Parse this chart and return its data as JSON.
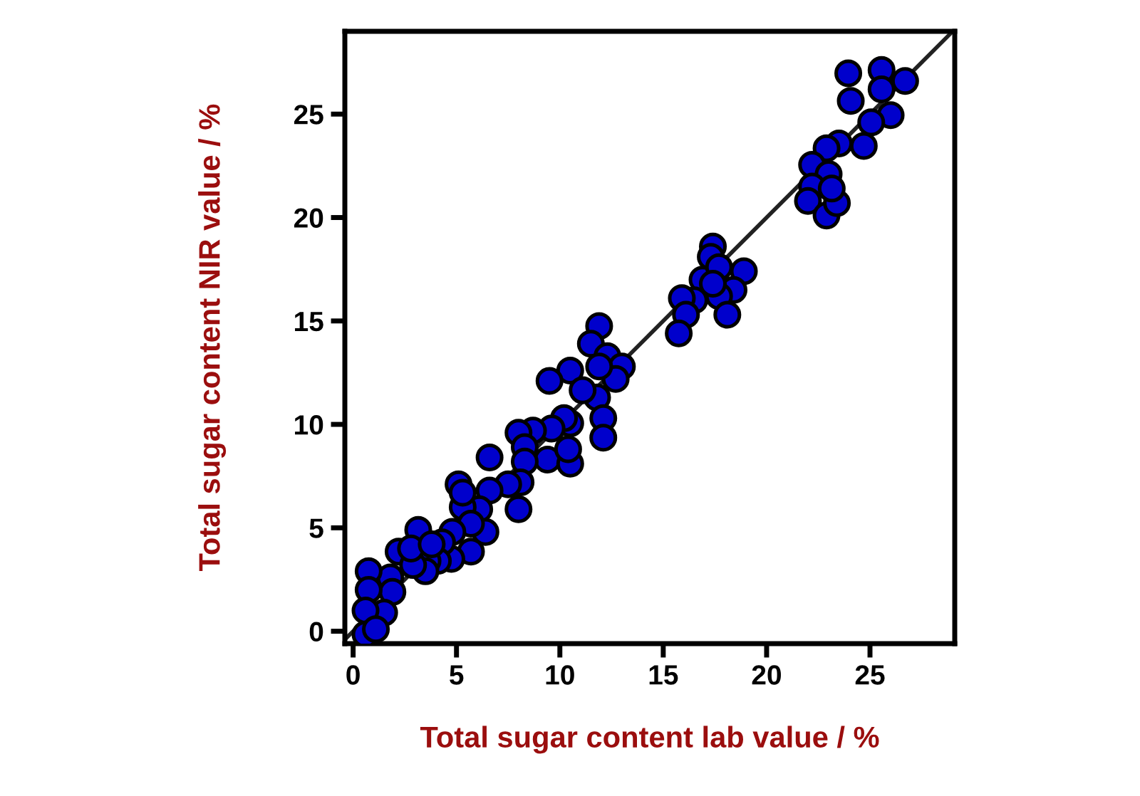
{
  "chart_data": {
    "type": "scatter",
    "xlabel": "Total sugar content lab value / %",
    "ylabel": "Total sugar content NIR value / %",
    "xlim": [
      -0.4,
      29.1
    ],
    "ylim": [
      -0.6,
      29
    ],
    "xticks": [
      0,
      5,
      10,
      15,
      20,
      25
    ],
    "yticks": [
      0,
      5,
      10,
      15,
      20,
      25
    ],
    "grid": false,
    "series": [
      {
        "type": "line",
        "color": "#222222",
        "x": [
          -0.4,
          29
        ],
        "values": [
          -0.4,
          29
        ]
      },
      {
        "marker": "circle",
        "color": "#0000cc",
        "x": [
          23.95,
          25.56,
          26.7,
          24.07,
          25.56,
          26.0,
          25.06,
          24.7,
          23.5,
          22.9,
          22.2,
          23.0,
          22.2,
          22.0,
          22.9,
          23.4,
          23.15,
          17.4,
          17.3,
          16.9,
          17.7,
          18.9,
          18.4,
          17.7,
          18.1,
          16.5,
          15.9,
          16.1,
          15.75,
          17.4,
          11.9,
          11.5,
          12.3,
          13.0,
          12.7,
          11.9,
          10.5,
          9.5,
          11.8,
          11.1,
          12.1,
          12.1,
          10.5,
          10.2,
          9.6,
          8.7,
          8.0,
          8.3,
          9.4,
          10.5,
          10.4,
          8.3,
          8.1,
          8.0,
          7.5,
          6.6,
          6.6,
          6.1,
          6.4,
          5.3,
          5.1,
          5.3,
          5.7,
          4.8,
          5.7,
          4.75,
          4.3,
          4.1,
          3.15,
          3.6,
          3.5,
          2.2,
          1.8,
          1.9,
          1.5,
          2.9,
          0.75,
          0.75,
          0.6,
          0.6,
          1.1,
          2.8,
          3.8
        ],
        "values": [
          26.97,
          27.13,
          26.6,
          25.64,
          26.2,
          24.95,
          24.6,
          23.46,
          23.58,
          23.35,
          22.55,
          22.1,
          21.5,
          20.8,
          20.1,
          20.7,
          21.4,
          18.6,
          18.1,
          17.0,
          17.6,
          17.4,
          16.5,
          16.2,
          15.3,
          16.0,
          16.1,
          15.3,
          14.4,
          16.8,
          14.75,
          13.9,
          13.3,
          12.8,
          12.2,
          12.8,
          12.6,
          12.1,
          11.3,
          11.65,
          10.3,
          9.36,
          10.05,
          10.3,
          9.8,
          9.7,
          9.6,
          8.9,
          8.3,
          8.1,
          8.8,
          8.2,
          7.2,
          5.9,
          7.1,
          8.4,
          6.8,
          5.9,
          4.8,
          6.0,
          7.1,
          6.7,
          5.2,
          4.8,
          3.85,
          3.5,
          4.3,
          3.4,
          4.9,
          3.4,
          2.9,
          3.85,
          2.6,
          1.9,
          0.9,
          3.2,
          2.9,
          2.0,
          1.0,
          -0.15,
          0.1,
          4.0,
          4.2
        ]
      }
    ]
  }
}
